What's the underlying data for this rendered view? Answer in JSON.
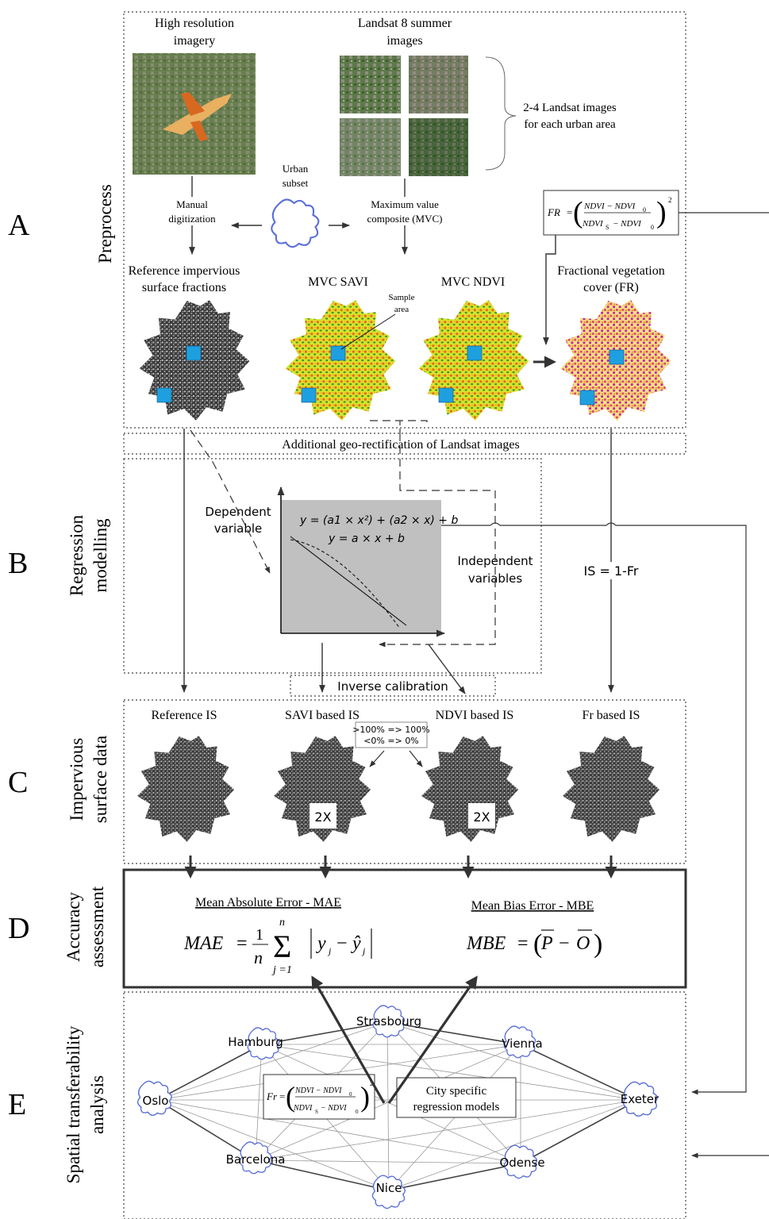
{
  "stages": {
    "a": {
      "letter": "A",
      "label": "Preprocess"
    },
    "b": {
      "letter": "B",
      "label_line1": "Regression",
      "label_line2": "modelling"
    },
    "c": {
      "letter": "C",
      "label_line1": "Impervious",
      "label_line2": "surface data"
    },
    "d": {
      "letter": "D",
      "label_line1": "Accuracy",
      "label_line2": "assessment"
    },
    "e": {
      "letter": "E",
      "label_line1": "Spatial transferability",
      "label_line2": "analysis"
    }
  },
  "preprocess": {
    "high_res_line1": "High resolution",
    "high_res_line2": "imagery",
    "landsat_line1": "Landsat 8  summer",
    "landsat_line2": "images",
    "landsat_note_line1": "2-4 Landsat images",
    "landsat_note_line2": "for each urban area",
    "urban_subset_line1": "Urban",
    "urban_subset_line2": "subset",
    "manual_line1": "Manual",
    "manual_line2": "digitization",
    "mvc_line1": "Maximum value",
    "mvc_line2": "composite (MVC)",
    "fr_formula_lhs": "FR",
    "ref_line1": "Reference impervious",
    "ref_line2": "surface fractions",
    "mvc_savi": "MVC SAVI",
    "mvc_ndvi": "MVC NDVI",
    "fvc_line1": "Fractional vegetation",
    "fvc_line2": "cover (FR)",
    "sample_line1": "Sample",
    "sample_line2": "area",
    "georect": "Additional geo-rectification of Landsat images"
  },
  "regression": {
    "dependent_line1": "Dependent",
    "dependent_line2": "variable",
    "eq_poly": "y = (a1 × x²) + (a2 × x) + b",
    "eq_linear": "y = a × x + b",
    "independent_line1": "Independent",
    "independent_line2": "variables",
    "is_formula": "IS = 1-Fr",
    "inverse_calibration": "Inverse calibration"
  },
  "impervious": {
    "reference": "Reference IS",
    "savi": "SAVI based IS",
    "ndvi": "NDVI based IS",
    "fr": "Fr based IS",
    "clip_line1": ">100% => 100%",
    "clip_line2": "<0% => 0%",
    "badge": "2X"
  },
  "accuracy": {
    "mae_title": "Mean Absolute Error - MAE",
    "mbe_title": "Mean Bias Error - MBE",
    "mae_lhs": "MAE",
    "mbe_lhs": "MBE"
  },
  "transfer": {
    "cities": [
      "Strasbourg",
      "Hamburg",
      "Vienna",
      "Oslo",
      "Exeter",
      "Barcelona",
      "Odense",
      "Nice"
    ],
    "fr_lhs": "Fr",
    "models_line1": "City specific",
    "models_line2": "regression models"
  }
}
